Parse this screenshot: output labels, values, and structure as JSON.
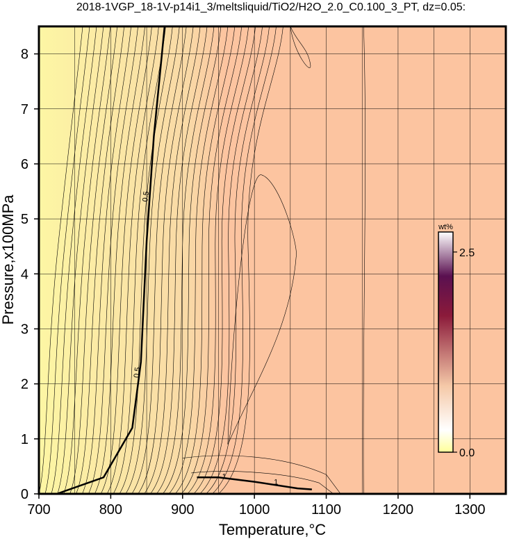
{
  "chart_data": {
    "type": "heatmap",
    "title": "2018-1VGP_18-1V-p14i1_3/meltsliquid/TiO2/H2O_2.0_C0.100_3_PT, dz=0.05:",
    "xlabel": "Temperature,°C",
    "ylabel": "Pressure,x100MPa",
    "xlim": [
      700,
      1350
    ],
    "ylim": [
      0,
      8.5
    ],
    "x_ticks": [
      700,
      800,
      900,
      1000,
      1100,
      1200,
      1300
    ],
    "y_ticks": [
      0,
      1,
      2,
      3,
      4,
      5,
      6,
      7,
      8
    ],
    "grid": true,
    "colorbar": {
      "label": "wt%",
      "min": 0.0,
      "max": 2.75,
      "ticks": [
        0.0,
        2.5
      ],
      "tick_labels": [
        "0.0",
        "2.5"
      ],
      "colors": [
        "#ffff99",
        "#ffffff",
        "#f5c9a8",
        "#8b1a3a",
        "#5a1050",
        "#ffffff"
      ]
    },
    "field_colors": {
      "low_temperature": "#fdf6a4",
      "high_temperature": "#fcc4a0"
    },
    "contour_labels": [
      {
        "text": "0.5",
        "x": 852,
        "y": 5.4
      },
      {
        "text": "0.5",
        "x": 840,
        "y": 2.2
      },
      {
        "text": "1",
        "x": 958,
        "y": 0.27
      },
      {
        "text": "1",
        "x": 1030,
        "y": 0.17
      }
    ],
    "bold_contours": [
      {
        "value": 0.5,
        "points": [
          [
            725,
            0
          ],
          [
            790,
            0.3
          ],
          [
            830,
            1.2
          ],
          [
            842,
            2.4
          ],
          [
            850,
            4.6
          ],
          [
            860,
            6.5
          ],
          [
            875,
            8.5
          ]
        ]
      },
      {
        "value": 1.0,
        "points": [
          [
            920,
            0.3
          ],
          [
            950,
            0.3
          ],
          [
            1000,
            0.22
          ],
          [
            1060,
            0.1
          ],
          [
            1080,
            0.08
          ]
        ]
      }
    ]
  }
}
